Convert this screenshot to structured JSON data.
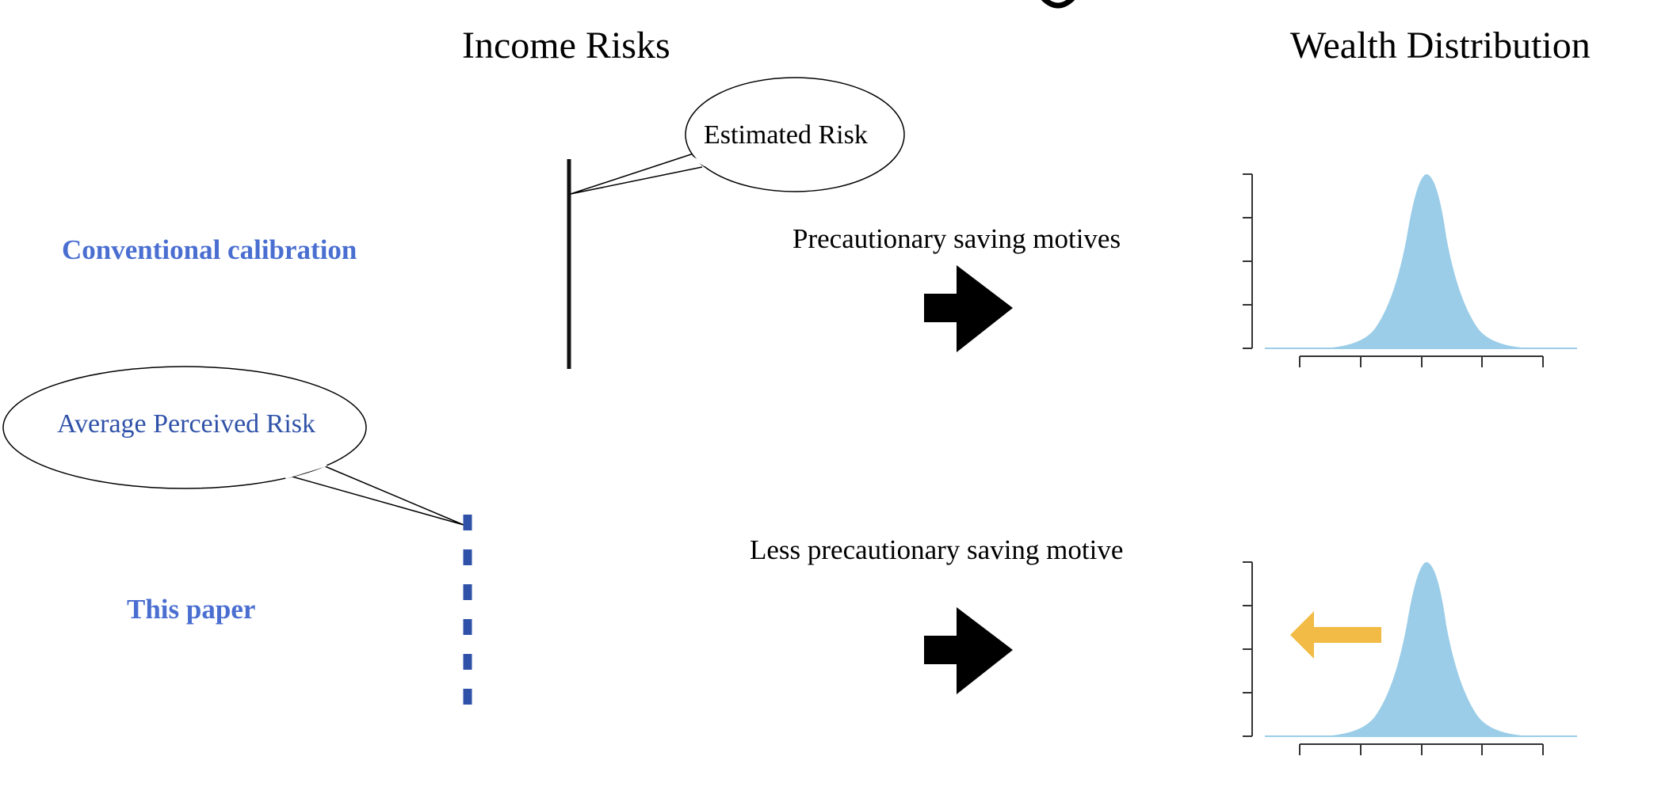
{
  "columns": {
    "income": "Income Risks",
    "wealth": "Wealth Distribution"
  },
  "rows": {
    "conventional": {
      "label": "Conventional calibration",
      "bubble": "Estimated Risk",
      "motive": "Precautionary saving motives"
    },
    "paper": {
      "label": "This paper",
      "bubble": "Average Perceived Risk",
      "motive": "Less precautionary saving motive"
    }
  },
  "colors": {
    "label_blue": "#4a6fd1",
    "paper_blue": "#2f52a8",
    "hist_fill": "#9bcde8",
    "arrow_black": "#000000",
    "shift_arrow": "#f2bb45"
  },
  "icons": {
    "flow_arrow": "right-arrow-icon",
    "shift_arrow": "left-arrow-icon"
  }
}
